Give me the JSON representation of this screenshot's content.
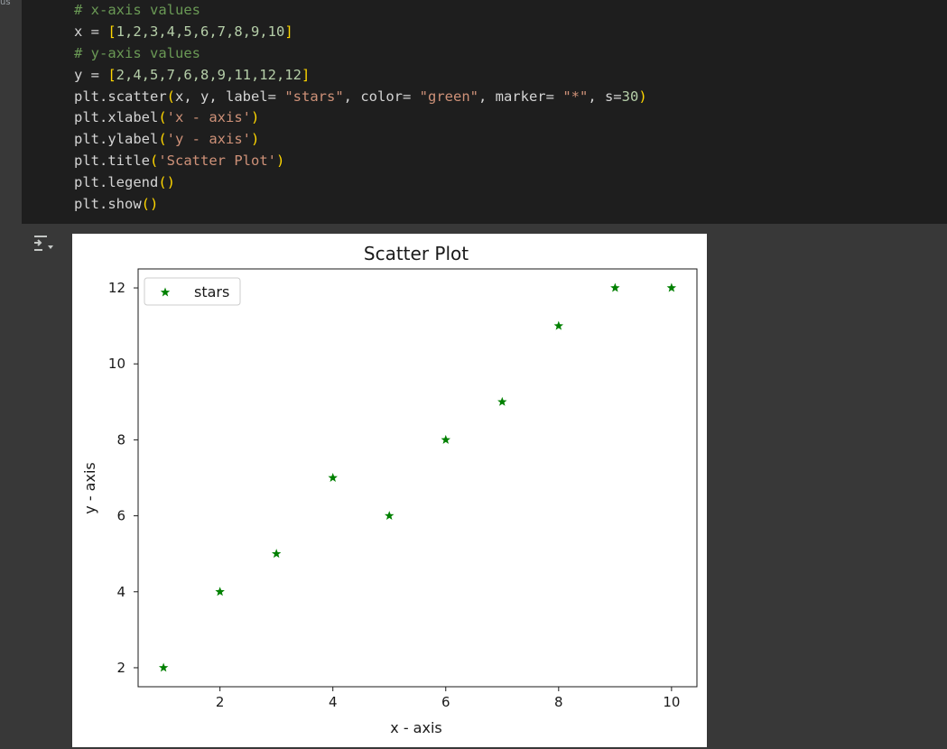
{
  "gutter": {
    "label": "us"
  },
  "code_cell": {
    "lines": [
      {
        "segments": [
          {
            "t": "# x-axis values",
            "c": "cm"
          }
        ]
      },
      {
        "segments": [
          {
            "t": "x = "
          },
          {
            "t": "[",
            "c": "br"
          },
          {
            "t": "1,2,3,4,5,6,7,8,9,10",
            "c": "nm"
          },
          {
            "t": "]",
            "c": "br"
          }
        ]
      },
      {
        "segments": [
          {
            "t": "# y-axis values",
            "c": "cm"
          }
        ]
      },
      {
        "segments": [
          {
            "t": "y = "
          },
          {
            "t": "[",
            "c": "br"
          },
          {
            "t": "2,4,5,7,6,8,9,11,12,12",
            "c": "nm"
          },
          {
            "t": "]",
            "c": "br"
          }
        ]
      },
      {
        "segments": [
          {
            "t": "plt.scatter"
          },
          {
            "t": "(",
            "c": "br"
          },
          {
            "t": "x, y, label= "
          },
          {
            "t": "\"stars\"",
            "c": "st"
          },
          {
            "t": ", color= "
          },
          {
            "t": "\"green\"",
            "c": "st"
          },
          {
            "t": ", marker= "
          },
          {
            "t": "\"*\"",
            "c": "st"
          },
          {
            "t": ", s="
          },
          {
            "t": "30",
            "c": "nm"
          },
          {
            "t": ")",
            "c": "br"
          }
        ]
      },
      {
        "segments": [
          {
            "t": "plt.xlabel"
          },
          {
            "t": "(",
            "c": "br"
          },
          {
            "t": "'x - axis'",
            "c": "st"
          },
          {
            "t": ")",
            "c": "br"
          }
        ]
      },
      {
        "segments": [
          {
            "t": "plt.ylabel"
          },
          {
            "t": "(",
            "c": "br"
          },
          {
            "t": "'y - axis'",
            "c": "st"
          },
          {
            "t": ")",
            "c": "br"
          }
        ]
      },
      {
        "segments": [
          {
            "t": "plt.title"
          },
          {
            "t": "(",
            "c": "br"
          },
          {
            "t": "'Scatter Plot'",
            "c": "st"
          },
          {
            "t": ")",
            "c": "br"
          }
        ]
      },
      {
        "segments": [
          {
            "t": "plt.legend"
          },
          {
            "t": "()",
            "c": "br"
          }
        ]
      },
      {
        "segments": [
          {
            "t": "plt.show"
          },
          {
            "t": "()",
            "c": "br"
          }
        ]
      }
    ]
  },
  "output": {
    "icon": "output-toggle-icon"
  },
  "chart_data": {
    "type": "scatter",
    "title": "Scatter Plot",
    "xlabel": "x - axis",
    "ylabel": "y - axis",
    "x": [
      1,
      2,
      3,
      4,
      5,
      6,
      7,
      8,
      9,
      10
    ],
    "y": [
      2,
      4,
      5,
      7,
      6,
      8,
      9,
      11,
      12,
      12
    ],
    "series_name": "stars",
    "color": "#008000",
    "marker": "*",
    "xlim": [
      0.55,
      10.45
    ],
    "ylim": [
      1.5,
      12.5
    ],
    "xticks": [
      2,
      4,
      6,
      8,
      10
    ],
    "yticks": [
      2,
      4,
      6,
      8,
      10,
      12
    ],
    "legend_position": "upper-left",
    "grid": false
  }
}
